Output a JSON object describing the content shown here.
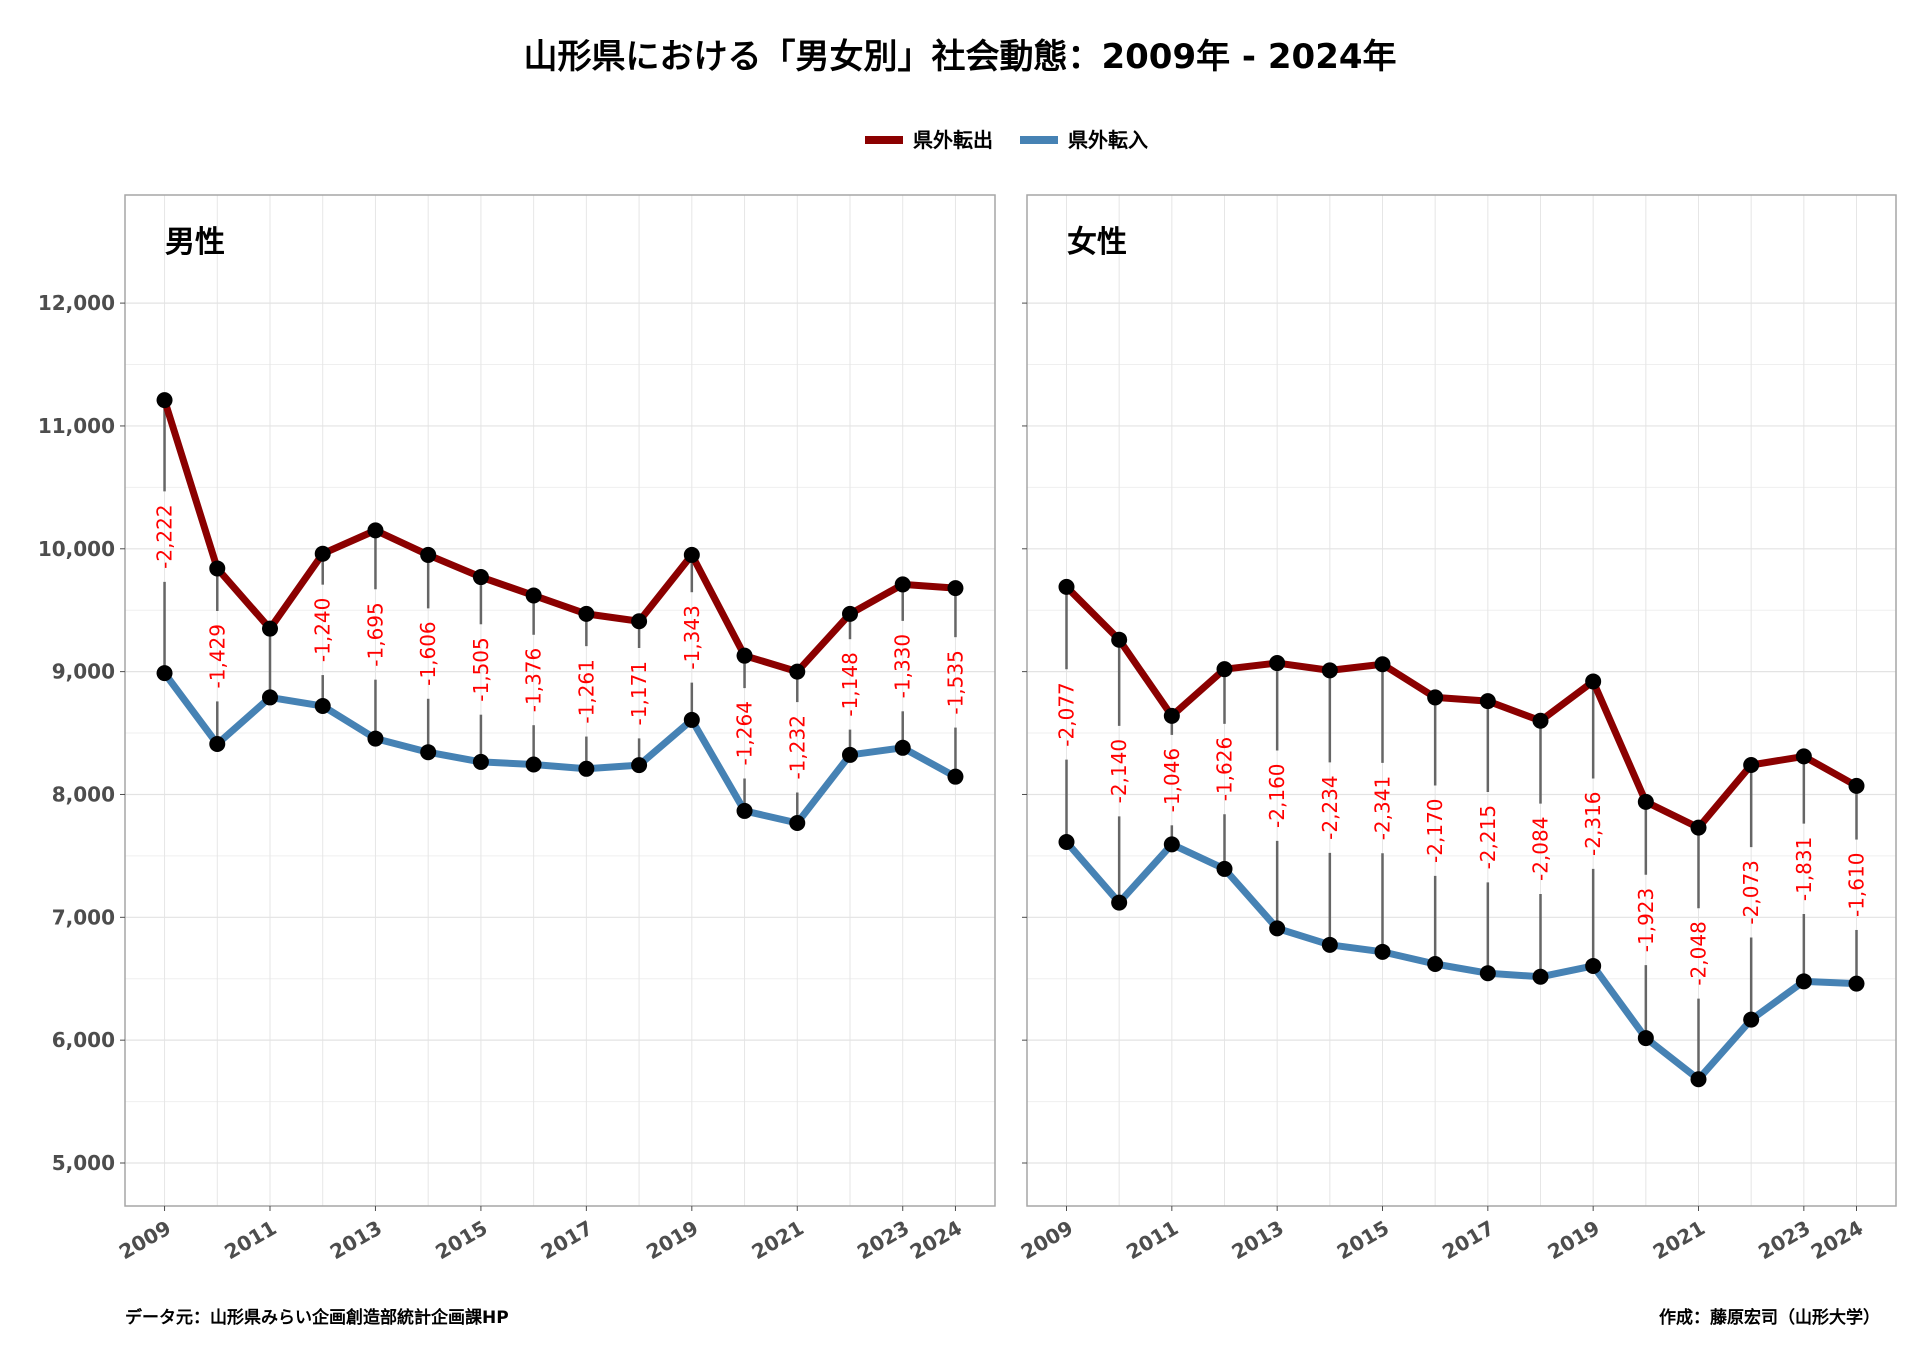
{
  "title": "山形県における「男女別」社会動態：2009年 - 2024年",
  "legend": [
    {
      "name": "県外転出",
      "color": "#8b0000"
    },
    {
      "name": "県外転入",
      "color": "#4682b4"
    }
  ],
  "footer": {
    "source": "データ元：山形県みらい企画創造部統計企画課HP",
    "author": "作成：藤原宏司（山形大学）"
  },
  "chart_data": {
    "type": "line",
    "y_ticks": [
      "5,000",
      "6,000",
      "7,000",
      "8,000",
      "9,000",
      "10,000",
      "11,000",
      "12,000"
    ],
    "x_ticks": [
      "2009",
      "2011",
      "2013",
      "2015",
      "2017",
      "2019",
      "2021",
      "2023",
      "2024"
    ],
    "ylim": [
      4650,
      12880
    ],
    "xlim": [
      2008.25,
      2024.75
    ],
    "x": [
      2009,
      2010,
      2011,
      2012,
      2013,
      2014,
      2015,
      2016,
      2017,
      2018,
      2019,
      2020,
      2021,
      2022,
      2023,
      2024
    ],
    "grid": true,
    "legend_position": "top",
    "panels": [
      {
        "title": "男性",
        "series": [
          {
            "name": "県外転出",
            "color": "#8b0000",
            "values": [
              11210,
              9840,
              9350,
              9960,
              10150,
              9950,
              9770,
              9620,
              9470,
              9410,
              9950,
              9130,
              9000,
              9470,
              9710,
              9680
            ]
          },
          {
            "name": "県外転入",
            "color": "#4682b4",
            "values": [
              8988,
              8411,
              8790,
              8720,
              8455,
              8344,
              8265,
              8244,
              8209,
              8239,
              8607,
              7866,
              7768,
              8322,
              8380,
              8145
            ]
          }
        ],
        "differences": [
          "-2,222",
          "-1,429",
          "",
          "-1,240",
          "-1,695",
          "-1,606",
          "-1,505",
          "-1,376",
          "-1,261",
          "-1,171",
          "-1,343",
          "-1,264",
          "-1,232",
          "-1,148",
          "-1,330",
          "-1,535"
        ]
      },
      {
        "title": "女性",
        "series": [
          {
            "name": "県外転出",
            "color": "#8b0000",
            "values": [
              9690,
              9260,
              8640,
              9020,
              9070,
              9010,
              9060,
              8790,
              8760,
              8600,
              8920,
              7940,
              7730,
              8240,
              8310,
              8070
            ]
          },
          {
            "name": "県外転入",
            "color": "#4682b4",
            "values": [
              7613,
              7120,
              7594,
              7394,
              6910,
              6776,
              6719,
              6620,
              6545,
              6516,
              6604,
              6017,
              5682,
              6167,
              6479,
              6460
            ]
          }
        ],
        "differences": [
          "-2,077",
          "-2,140",
          "-1,046",
          "-1,626",
          "-2,160",
          "-2,234",
          "-2,341",
          "-2,170",
          "-2,215",
          "-2,084",
          "-2,316",
          "-1,923",
          "-2,048",
          "-2,073",
          "-1,831",
          "-1,610"
        ]
      }
    ]
  }
}
